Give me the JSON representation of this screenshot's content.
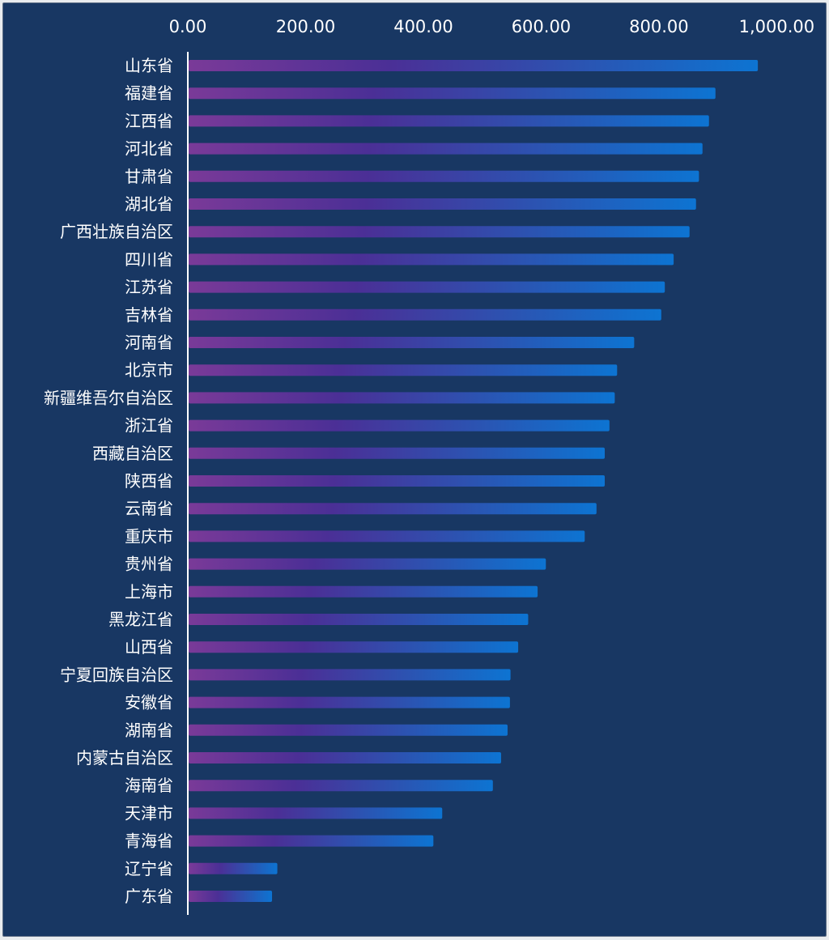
{
  "chart_data": {
    "type": "bar",
    "orientation": "horizontal",
    "title": "",
    "xlabel": "",
    "ylabel": "",
    "xlim": [
      0,
      1000
    ],
    "x_ticks": [
      "0.00",
      "200.00",
      "400.00",
      "600.00",
      "800.00",
      "1,000.00"
    ],
    "x_axis_position": "top",
    "grid": false,
    "legend": "none",
    "bar_gradient": [
      "#7a3a98",
      "#4b2f96",
      "#2a55b3",
      "#0d74d2"
    ],
    "background": "#183763",
    "categories": [
      "山东省",
      "福建省",
      "江西省",
      "河北省",
      "甘肃省",
      "湖北省",
      "广西壮族自治区",
      "四川省",
      "江苏省",
      "吉林省",
      "河南省",
      "北京市",
      "新疆维吾尔自治区",
      "浙江省",
      "西藏自治区",
      "陕西省",
      "云南省",
      "重庆市",
      "贵州省",
      "上海市",
      "黑龙江省",
      "山西省",
      "宁夏回族自治区",
      "安徽省",
      "湖南省",
      "内蒙古自治区",
      "海南省",
      "天津市",
      "青海省",
      "辽宁省",
      "广东省"
    ],
    "values": [
      968,
      896,
      885,
      874,
      868,
      863,
      852,
      825,
      810,
      804,
      758,
      729,
      725,
      716,
      708,
      708,
      694,
      674,
      608,
      594,
      578,
      561,
      548,
      547,
      543,
      532,
      518,
      432,
      417,
      152,
      143
    ]
  }
}
